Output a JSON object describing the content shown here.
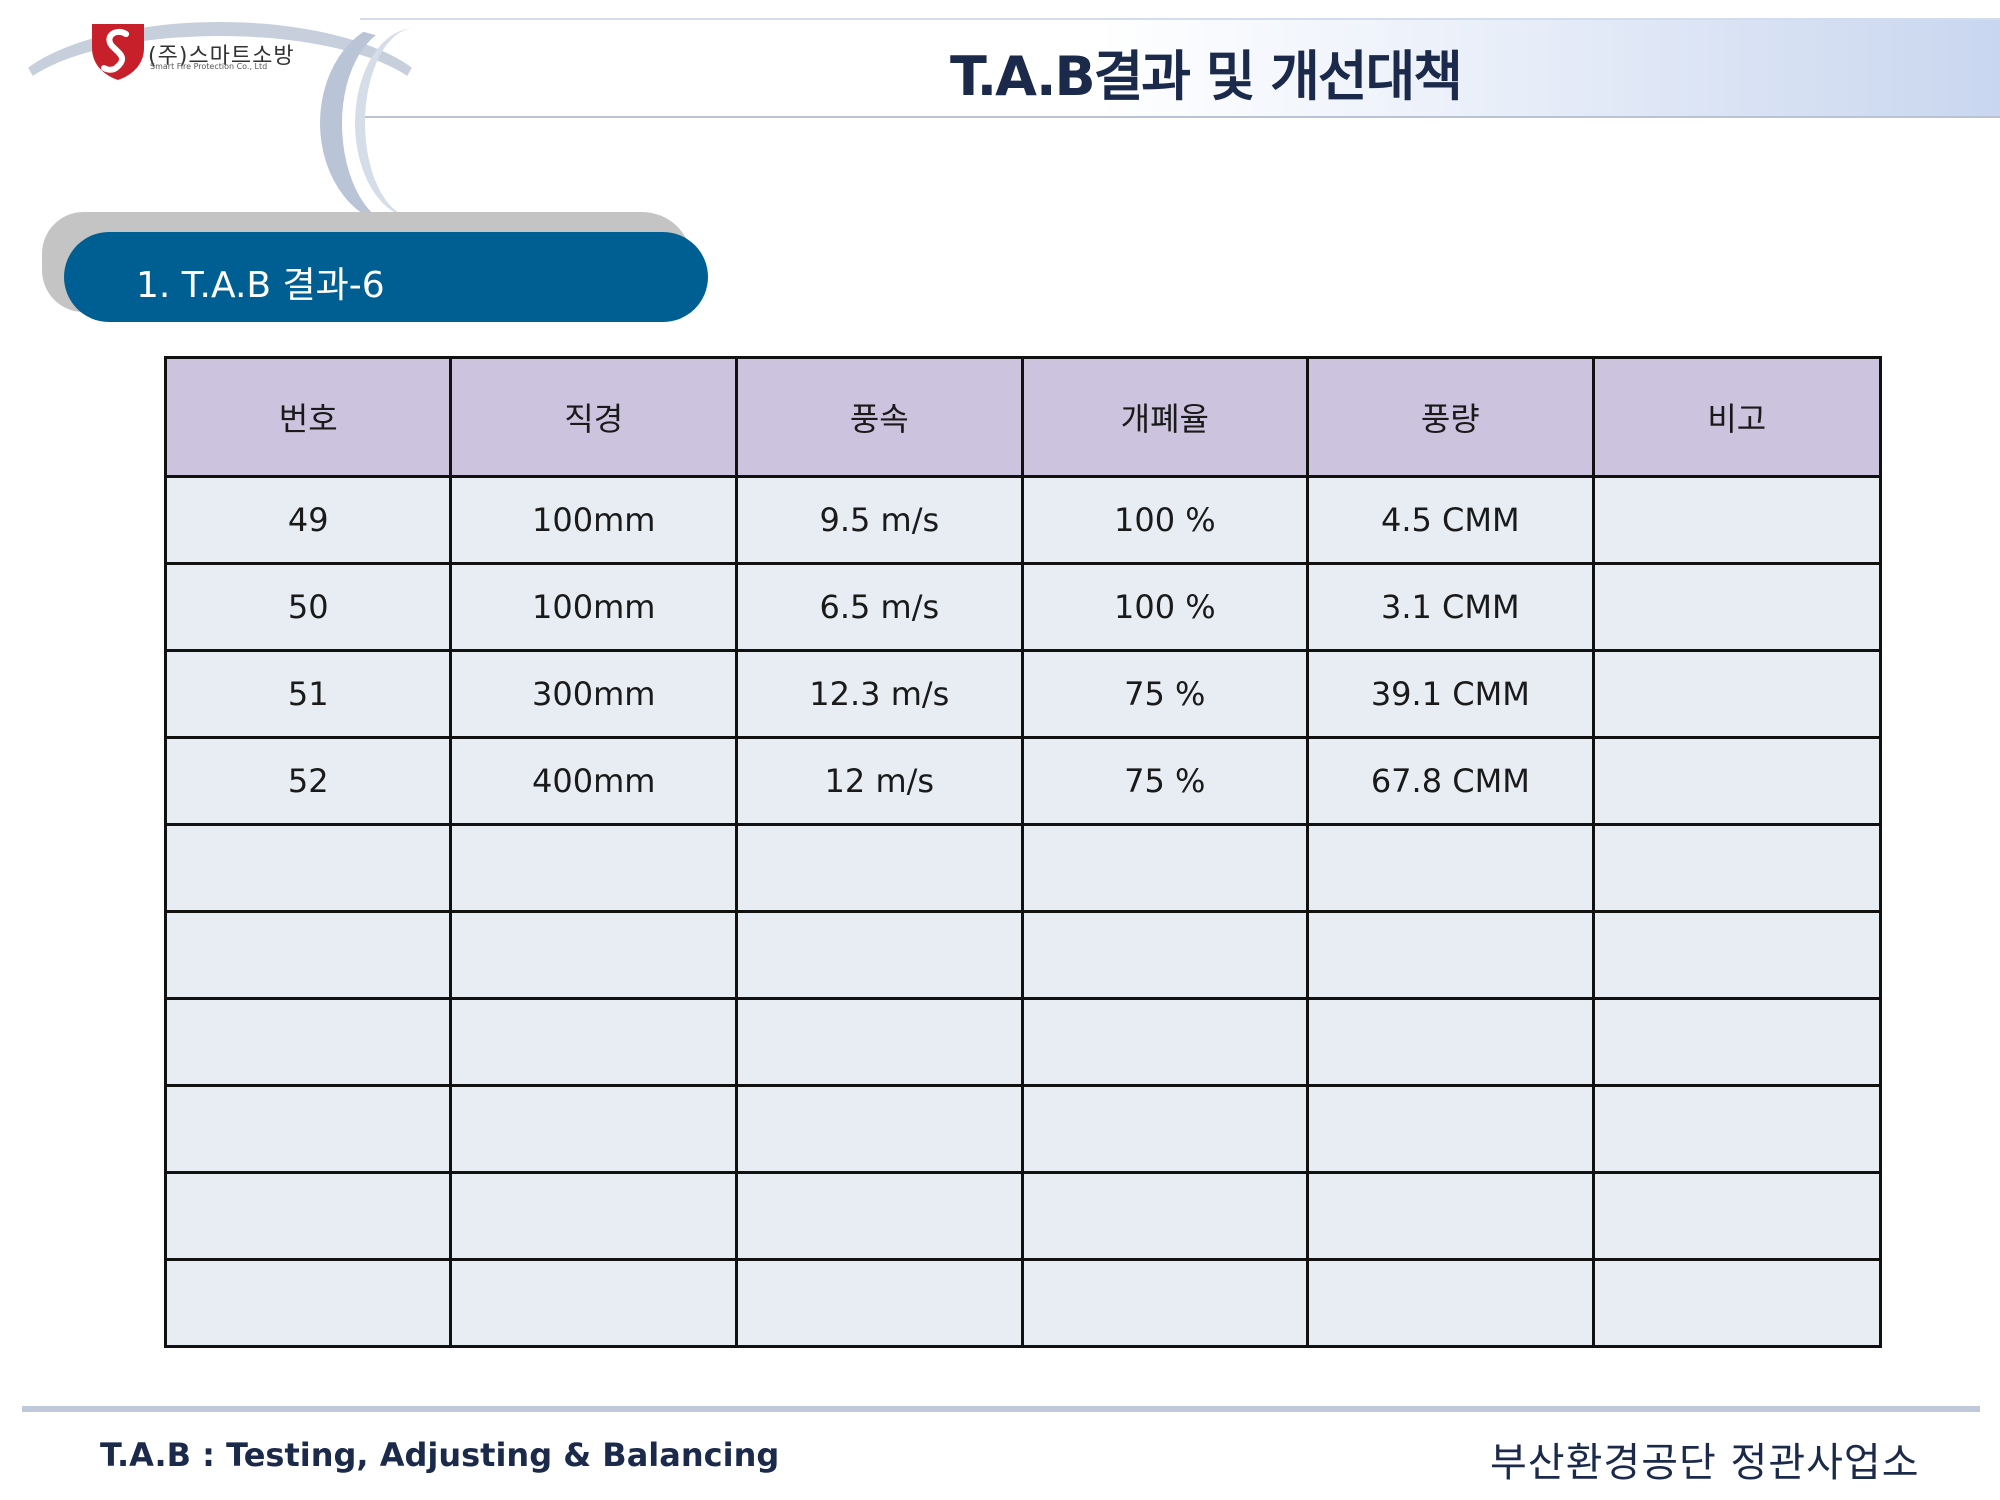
{
  "header": {
    "company_name": "(주)스마트소방",
    "company_name_en": "Smart Fire Protection Co., Ltd",
    "title": "T.A.B결과 및 개선대책"
  },
  "section": {
    "title": "1. T.A.B 결과-6"
  },
  "table": {
    "columns": [
      "번호",
      "직경",
      "풍속",
      "개폐율",
      "풍량",
      "비고"
    ],
    "rows": [
      [
        "49",
        "100mm",
        "9.5  m/s",
        "100  %",
        "4.5  CMM",
        ""
      ],
      [
        "50",
        "100mm",
        "6.5  m/s",
        "100  %",
        "3.1  CMM",
        ""
      ],
      [
        "51",
        "300mm",
        "12.3  m/s",
        "75  %",
        "39.1  CMM",
        ""
      ],
      [
        "52",
        "400mm",
        "12  m/s",
        "75  %",
        "67.8  CMM",
        ""
      ],
      [
        "",
        "",
        "",
        "",
        "",
        ""
      ],
      [
        "",
        "",
        "",
        "",
        "",
        ""
      ],
      [
        "",
        "",
        "",
        "",
        "",
        ""
      ],
      [
        "",
        "",
        "",
        "",
        "",
        ""
      ],
      [
        "",
        "",
        "",
        "",
        "",
        ""
      ],
      [
        "",
        "",
        "",
        "",
        "",
        ""
      ]
    ]
  },
  "footer": {
    "left": "T.A.B : Testing, Adjusting & Balancing",
    "right": "부산환경공단 정관사업소"
  },
  "colors": {
    "header_row": "#ccc3de",
    "body_row": "#e8edf3",
    "pill": "#005f92",
    "logo_red": "#c8202a"
  }
}
